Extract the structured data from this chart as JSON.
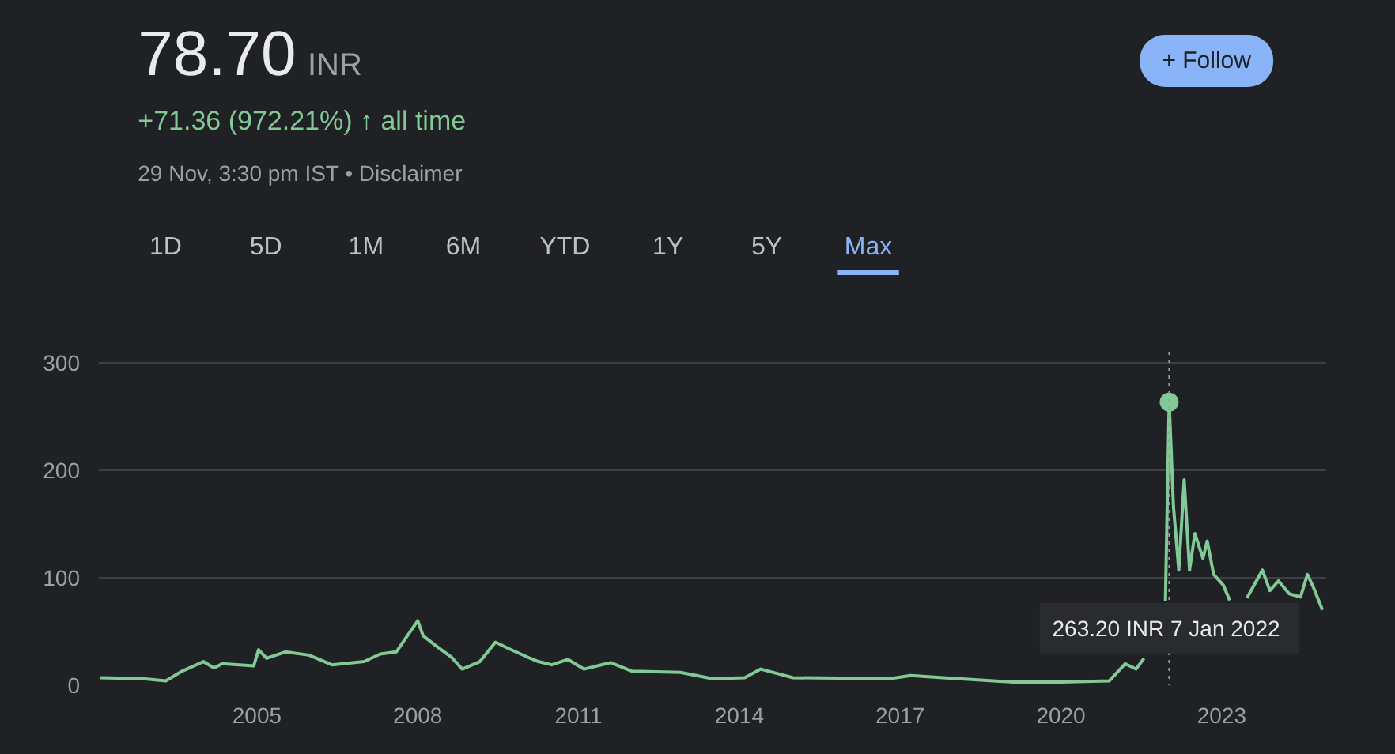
{
  "chart_data": {
    "type": "line",
    "x": [
      2002.08,
      2002.88,
      2003.3,
      2003.6,
      2004.0,
      2004.2,
      2004.35,
      2004.94,
      2005.03,
      2005.18,
      2005.53,
      2005.97,
      2006.4,
      2007.0,
      2007.3,
      2007.6,
      2008.0,
      2008.1,
      2008.33,
      2008.63,
      2008.83,
      2009.16,
      2009.45,
      2009.7,
      2010.1,
      2010.25,
      2010.5,
      2010.8,
      2011.1,
      2011.6,
      2012.0,
      2012.9,
      2013.5,
      2014.1,
      2014.4,
      2015.0,
      2016.8,
      2017.2,
      2017.8,
      2019.1,
      2020.0,
      2020.9,
      2021.2,
      2021.4,
      2021.55,
      2021.75,
      2021.95,
      2022.02,
      2022.1,
      2022.2,
      2022.3,
      2022.4,
      2022.5,
      2022.65,
      2022.73,
      2022.85,
      2023.03,
      2023.15,
      2023.3,
      2023.47,
      2023.76,
      2023.9,
      2024.06,
      2024.26,
      2024.47,
      2024.6,
      2024.72,
      2024.88
    ],
    "series": [
      {
        "color": "#81c995",
        "values": [
          7,
          6,
          4,
          13,
          22,
          16,
          20,
          18,
          33,
          25,
          31,
          28,
          19,
          22,
          29,
          31,
          60,
          46,
          37,
          26,
          15,
          22,
          40,
          34,
          25,
          22,
          19,
          24,
          15,
          21,
          13,
          12,
          6,
          7,
          15,
          7,
          6,
          9,
          7,
          3,
          3,
          4,
          20,
          15,
          25,
          null,
          78,
          263.2,
          166,
          107,
          191,
          107,
          141,
          118,
          134,
          103,
          93,
          79,
          null,
          81,
          107,
          88,
          97,
          85,
          82,
          103,
          90,
          70
        ]
      }
    ],
    "xlim": [
      2002.05,
      2024.95
    ],
    "xticks": [
      2005,
      2008,
      2011,
      2014,
      2017,
      2020,
      2023
    ],
    "ylim": [
      0,
      310
    ],
    "yticks": [
      0,
      100,
      200,
      300
    ],
    "grid": "y",
    "marker": "none",
    "line_style": "solid",
    "ref_lines": [
      {
        "axis": "x",
        "value": 2022.02,
        "label": null,
        "color": "#9aa0a6",
        "line_style": "dotted"
      }
    ],
    "annotations": [
      "78.70",
      "INR",
      "+71.36 (972.21%) ↑ all time",
      "29 Nov, 3:30 pm IST • Disclaimer",
      "+ Follow",
      "1D",
      "5D",
      "1M",
      "6M",
      "YTD",
      "1Y",
      "5Y",
      "Max",
      "263.20 INR  7 Jan 2022"
    ]
  }
}
